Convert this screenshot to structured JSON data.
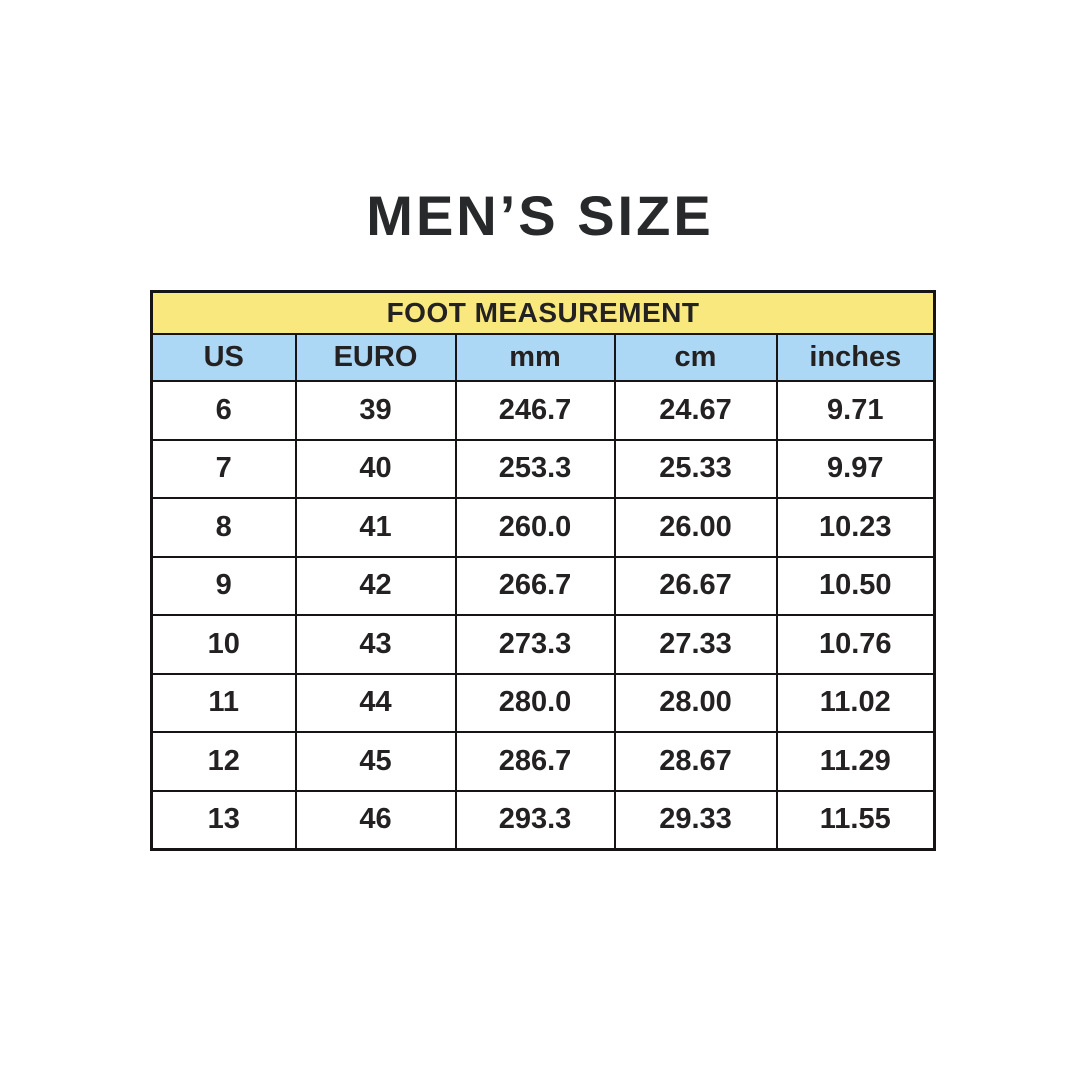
{
  "page": {
    "title": "MEN’S SIZE"
  },
  "table": {
    "header": "FOOT MEASUREMENT",
    "columns": [
      "US",
      "EURO",
      "mm",
      "cm",
      "inches"
    ],
    "rows": [
      [
        "6",
        "39",
        "246.7",
        "24.67",
        "9.71"
      ],
      [
        "7",
        "40",
        "253.3",
        "25.33",
        "9.97"
      ],
      [
        "8",
        "41",
        "260.0",
        "26.00",
        "10.23"
      ],
      [
        "9",
        "42",
        "266.7",
        "26.67",
        "10.50"
      ],
      [
        "10",
        "43",
        "273.3",
        "27.33",
        "10.76"
      ],
      [
        "11",
        "44",
        "280.0",
        "28.00",
        "11.02"
      ],
      [
        "12",
        "45",
        "286.7",
        "28.67",
        "11.29"
      ],
      [
        "13",
        "46",
        "293.3",
        "29.33",
        "11.55"
      ]
    ],
    "colors": {
      "header_bg": "#F9E87E",
      "column_header_bg": "#ACD8F5",
      "border": "#161415",
      "text": "#242122",
      "page_bg": "#FFFFFF"
    }
  },
  "chart_data": {
    "type": "table",
    "title": "MEN’S SIZE",
    "subtitle": "FOOT MEASUREMENT",
    "columns": [
      "US",
      "EURO",
      "mm",
      "cm",
      "inches"
    ],
    "rows": [
      [
        6,
        39,
        246.7,
        24.67,
        9.71
      ],
      [
        7,
        40,
        253.3,
        25.33,
        9.97
      ],
      [
        8,
        41,
        260.0,
        26.0,
        10.23
      ],
      [
        9,
        42,
        266.7,
        26.67,
        10.5
      ],
      [
        10,
        43,
        273.3,
        27.33,
        10.76
      ],
      [
        11,
        44,
        280.0,
        28.0,
        11.02
      ],
      [
        12,
        45,
        286.7,
        28.67,
        11.29
      ],
      [
        13,
        46,
        293.3,
        29.33,
        11.55
      ]
    ]
  }
}
